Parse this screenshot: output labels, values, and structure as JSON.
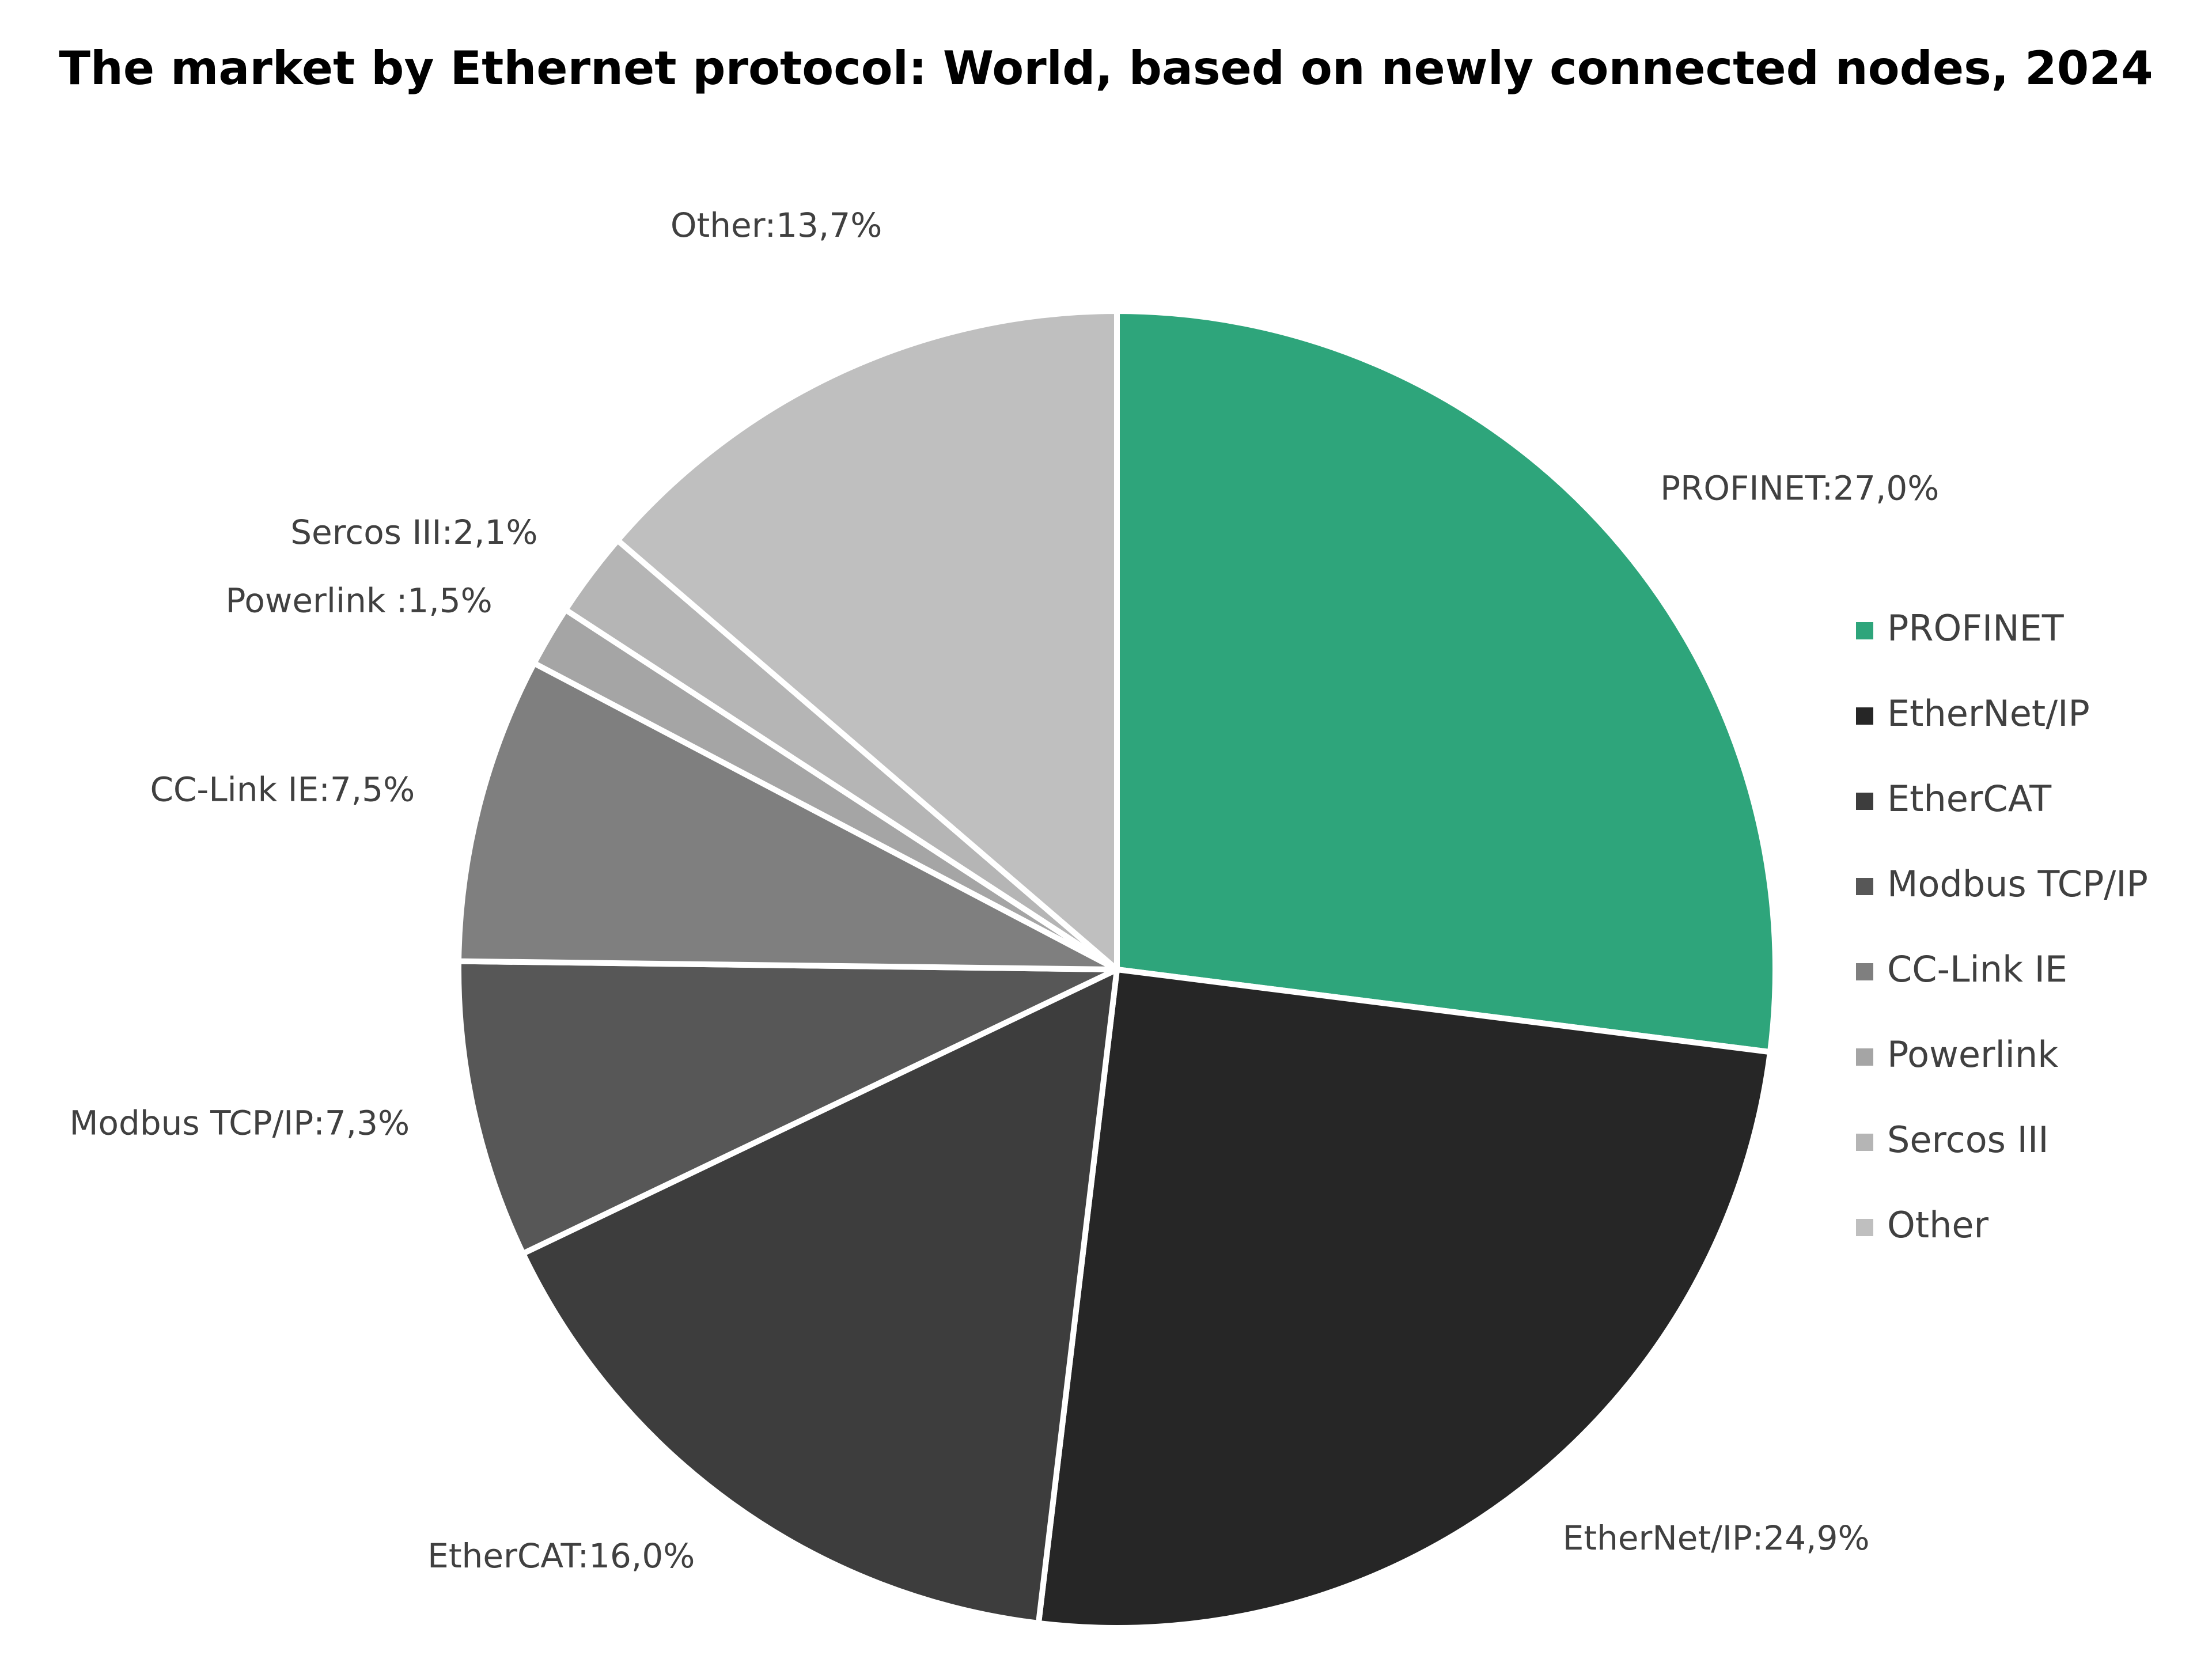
{
  "chart_data": {
    "type": "pie",
    "title": "The market by Ethernet protocol: World, based on newly connected nodes, 2024",
    "categories": [
      "PROFINET",
      "EtherNet/IP",
      "EtherCAT",
      "Modbus TCP/IP",
      "CC-Link IE",
      "Powerlink",
      "Sercos III",
      "Other"
    ],
    "values": [
      27.0,
      24.9,
      16.0,
      7.3,
      7.5,
      1.5,
      2.1,
      13.7
    ],
    "value_labels": [
      "PROFINET:27,0%",
      "EtherNet/IP:24,9%",
      "EtherCAT:16,0%",
      "Modbus TCP/IP:7,3%",
      "CC-Link IE:7,5%",
      "Powerlink :1,5%",
      "Sercos III:2,1%",
      "Other:13,7%"
    ],
    "colors": [
      "#2ea57b",
      "#262626",
      "#3d3d3d",
      "#575757",
      "#7f7f7f",
      "#a5a5a5",
      "#b5b5b5",
      "#bfbfbf"
    ],
    "legend": "right"
  }
}
